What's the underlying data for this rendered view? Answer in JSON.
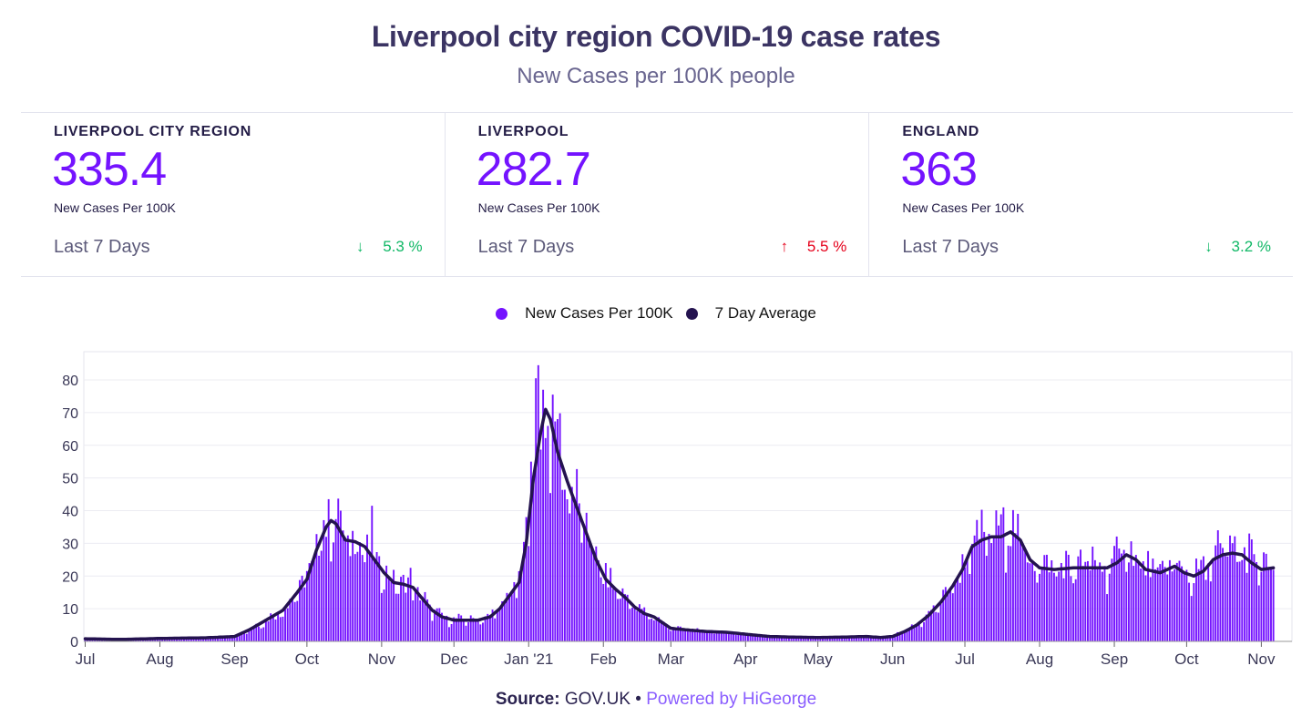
{
  "header": {
    "title": "Liverpool city region COVID-19 case rates",
    "subtitle": "New Cases per 100K people"
  },
  "stats": [
    {
      "name": "LIVERPOOL CITY REGION",
      "value": "335.4",
      "unit": "New Cases Per 100K",
      "period": "Last 7 Days",
      "arrow": "↓",
      "change": "5.3 %",
      "direction": "down"
    },
    {
      "name": "LIVERPOOL",
      "value": "282.7",
      "unit": "New Cases Per 100K",
      "period": "Last 7 Days",
      "arrow": "↑",
      "change": "5.5 %",
      "direction": "up"
    },
    {
      "name": "ENGLAND",
      "value": "363",
      "unit": "New Cases Per 100K",
      "period": "Last 7 Days",
      "arrow": "↓",
      "change": "3.2 %",
      "direction": "down"
    }
  ],
  "legend": [
    {
      "label": "New Cases Per 100K",
      "color": "#7413ff"
    },
    {
      "label": "7 Day Average",
      "color": "#24134f"
    }
  ],
  "footer": {
    "source_label": "Source:",
    "source_value": "GOV.UK",
    "separator": "•",
    "powered": "Powered by HiGeorge"
  },
  "chart_data": {
    "type": "bar",
    "title": "",
    "xlabel": "",
    "ylabel": "",
    "ylim": [
      0,
      88
    ],
    "yticks": [
      0,
      10,
      20,
      30,
      40,
      50,
      60,
      70,
      80
    ],
    "x_range_days": [
      0,
      493
    ],
    "month_ticks": [
      {
        "label": "Jul",
        "day": 0
      },
      {
        "label": "Aug",
        "day": 31
      },
      {
        "label": "Sep",
        "day": 62
      },
      {
        "label": "Oct",
        "day": 92
      },
      {
        "label": "Nov",
        "day": 123
      },
      {
        "label": "Dec",
        "day": 153
      },
      {
        "label": "Jan '21",
        "day": 184
      },
      {
        "label": "Feb",
        "day": 215
      },
      {
        "label": "Mar",
        "day": 243
      },
      {
        "label": "Apr",
        "day": 274
      },
      {
        "label": "May",
        "day": 304
      },
      {
        "label": "Jun",
        "day": 335
      },
      {
        "label": "Jul",
        "day": 365
      },
      {
        "label": "Aug",
        "day": 396
      },
      {
        "label": "Sep",
        "day": 427
      },
      {
        "label": "Oct",
        "day": 457
      },
      {
        "label": "Nov",
        "day": 488
      }
    ],
    "series": [
      {
        "name": "7 Day Average",
        "type": "line",
        "color": "#24134f",
        "points": [
          [
            0,
            0.8
          ],
          [
            15,
            0.6
          ],
          [
            31,
            0.9
          ],
          [
            50,
            1.1
          ],
          [
            62,
            1.5
          ],
          [
            68,
            3.5
          ],
          [
            75,
            6.5
          ],
          [
            82,
            9.5
          ],
          [
            88,
            15
          ],
          [
            92,
            19
          ],
          [
            96,
            28
          ],
          [
            100,
            35
          ],
          [
            102,
            37
          ],
          [
            104,
            36
          ],
          [
            108,
            31
          ],
          [
            112,
            30.5
          ],
          [
            116,
            29
          ],
          [
            120,
            25
          ],
          [
            124,
            21
          ],
          [
            128,
            18
          ],
          [
            132,
            17.5
          ],
          [
            136,
            16.5
          ],
          [
            140,
            13
          ],
          [
            144,
            9.5
          ],
          [
            148,
            7.5
          ],
          [
            153,
            6.5
          ],
          [
            158,
            6.5
          ],
          [
            163,
            6.5
          ],
          [
            168,
            7.5
          ],
          [
            172,
            10
          ],
          [
            176,
            14
          ],
          [
            180,
            18
          ],
          [
            183,
            30
          ],
          [
            186,
            50
          ],
          [
            189,
            64
          ],
          [
            191,
            71
          ],
          [
            193,
            68
          ],
          [
            196,
            58
          ],
          [
            200,
            49
          ],
          [
            204,
            41
          ],
          [
            208,
            33
          ],
          [
            212,
            25
          ],
          [
            216,
            19
          ],
          [
            220,
            16
          ],
          [
            224,
            13.5
          ],
          [
            228,
            10.5
          ],
          [
            232,
            8.5
          ],
          [
            236,
            7.5
          ],
          [
            240,
            5.5
          ],
          [
            243,
            4
          ],
          [
            250,
            3.5
          ],
          [
            258,
            3
          ],
          [
            266,
            2.8
          ],
          [
            274,
            2.2
          ],
          [
            284,
            1.5
          ],
          [
            294,
            1.3
          ],
          [
            304,
            1.2
          ],
          [
            314,
            1.3
          ],
          [
            324,
            1.5
          ],
          [
            330,
            1.2
          ],
          [
            335,
            1.5
          ],
          [
            340,
            3
          ],
          [
            345,
            5
          ],
          [
            350,
            8
          ],
          [
            355,
            12
          ],
          [
            360,
            17
          ],
          [
            364,
            22
          ],
          [
            368,
            29
          ],
          [
            372,
            31
          ],
          [
            376,
            32
          ],
          [
            380,
            32
          ],
          [
            384,
            33.5
          ],
          [
            388,
            31
          ],
          [
            392,
            25
          ],
          [
            396,
            22.5
          ],
          [
            402,
            22
          ],
          [
            410,
            22.5
          ],
          [
            418,
            22.5
          ],
          [
            424,
            22.5
          ],
          [
            428,
            24
          ],
          [
            432,
            26.5
          ],
          [
            436,
            25
          ],
          [
            440,
            22
          ],
          [
            446,
            21
          ],
          [
            452,
            23
          ],
          [
            456,
            21
          ],
          [
            460,
            20
          ],
          [
            464,
            21.5
          ],
          [
            468,
            25
          ],
          [
            472,
            26.5
          ],
          [
            476,
            27
          ],
          [
            480,
            26.5
          ],
          [
            484,
            24
          ],
          [
            488,
            22
          ],
          [
            493,
            22.5
          ]
        ]
      },
      {
        "name": "New Cases Per 100K",
        "type": "bar",
        "color": "#7413ff",
        "width_days": 0.72,
        "generated_from": "7 Day Average with daily variation",
        "peak_values": [
          [
            101,
            43.5
          ],
          [
            106,
            40
          ],
          [
            119,
            41.5
          ],
          [
            135,
            22.5
          ],
          [
            185,
            55
          ],
          [
            187,
            80.5
          ],
          [
            188,
            84.5
          ],
          [
            190,
            77
          ],
          [
            194,
            75.5
          ],
          [
            196,
            68
          ],
          [
            381,
            41
          ],
          [
            418,
            29
          ],
          [
            431,
            28
          ],
          [
            470,
            34
          ],
          [
            483,
            33
          ]
        ]
      }
    ]
  }
}
